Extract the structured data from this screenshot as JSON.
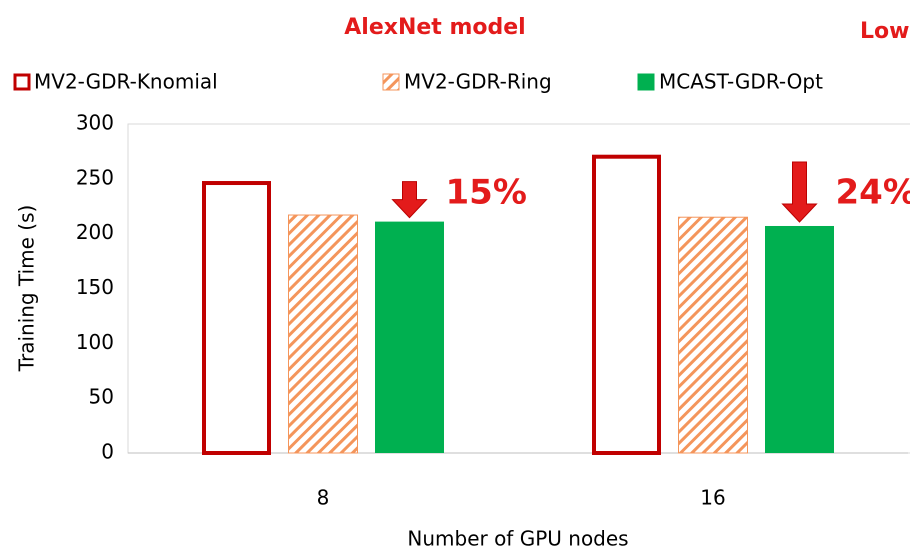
{
  "chart_data": {
    "type": "bar",
    "title": "AlexNet model",
    "annotations": [
      "15%",
      "24%"
    ],
    "side_note": "Low",
    "xlabel": "Number of GPU nodes",
    "ylabel": "Training Time (s)",
    "categories": [
      "8",
      "16"
    ],
    "series": [
      {
        "name": "MV2-GDR-Knomial",
        "color": "#c00000",
        "style": "outline",
        "values": [
          248,
          272
        ]
      },
      {
        "name": "MV2-GDR-Ring",
        "color": "#f4955b",
        "style": "hatch",
        "values": [
          217,
          215
        ]
      },
      {
        "name": "MCAST-GDR-Opt",
        "color": "#00b050",
        "style": "solid",
        "values": [
          211,
          207
        ]
      }
    ],
    "ylim": [
      0,
      300
    ],
    "yticks": [
      0,
      50,
      100,
      150,
      200,
      250,
      300
    ],
    "grid": false
  }
}
